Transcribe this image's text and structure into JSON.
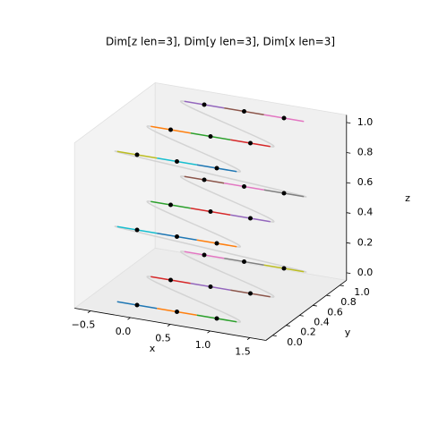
{
  "chart_data": {
    "type": "path3d",
    "title": "Dim[z len=3], Dim[y len=3], Dim[x len=3]",
    "x_label": "x",
    "y_label": "y",
    "z_label": "z",
    "x": [
      0,
      0.5,
      1,
      0,
      0.5,
      1,
      0,
      0.5,
      1,
      0,
      0.5,
      1,
      0,
      0.5,
      1,
      0,
      0.5,
      1,
      0,
      0.5,
      1,
      0,
      0.5,
      1,
      0,
      0.5,
      1
    ],
    "y": [
      0,
      0,
      0,
      0.5,
      0.5,
      0.5,
      1,
      1,
      1,
      0,
      0,
      0,
      0.5,
      0.5,
      0.5,
      1,
      1,
      1,
      0,
      0,
      0,
      0.5,
      0.5,
      0.5,
      1,
      1,
      1
    ],
    "z": [
      0,
      0,
      0,
      0,
      0,
      0,
      0,
      0,
      0,
      0.5,
      0.5,
      0.5,
      0.5,
      0.5,
      0.5,
      0.5,
      0.5,
      0.5,
      1,
      1,
      1,
      1,
      1,
      1,
      1,
      1,
      1
    ],
    "colors": [
      "#1f77b4",
      "#ff7f0e",
      "#2ca02c",
      "#d62728",
      "#9467bd",
      "#8c564b",
      "#e377c2",
      "#7f7f7f",
      "#bcbd22",
      "#17becf"
    ],
    "point_color": "#000000",
    "connector_color": "#d3d3d3",
    "xlim": [
      -0.7,
      1.7
    ],
    "ylim": [
      -0.1,
      1.1
    ],
    "zlim": [
      -0.05,
      1.05
    ],
    "xticks": [
      {
        "value": -0.5,
        "label": "−0.5"
      },
      {
        "value": 0,
        "label": "0.0"
      },
      0.5,
      {
        "value": 1,
        "label": "1.0"
      },
      1.5
    ],
    "yticks": [
      {
        "value": 0,
        "label": "0.0"
      },
      0.2,
      0.4,
      0.6,
      0.8,
      {
        "value": 1,
        "label": "1.0"
      }
    ],
    "zticks": [
      {
        "value": 0,
        "label": "0.0"
      },
      0.2,
      0.4,
      0.6,
      0.8,
      {
        "value": 1,
        "label": "1.0"
      }
    ]
  }
}
